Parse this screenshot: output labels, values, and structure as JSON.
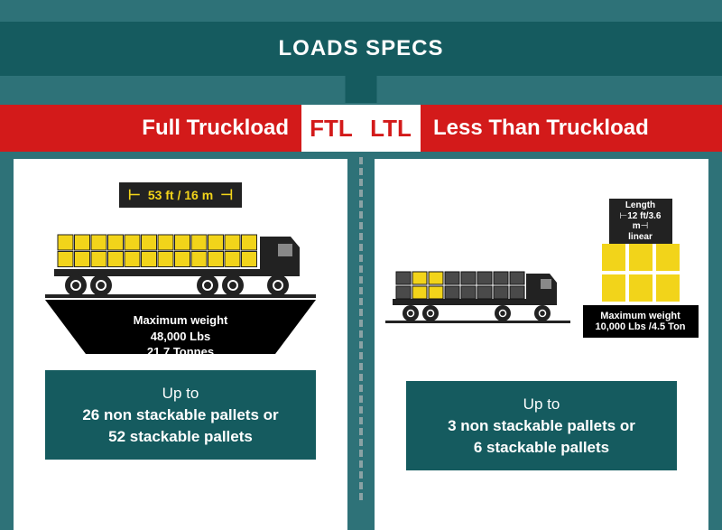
{
  "header": {
    "title": "LOADS SPECS"
  },
  "colors": {
    "bg": "#2e7278",
    "dark_teal": "#155b5f",
    "red": "#d31a1a",
    "yellow": "#f2d41a",
    "truck": "#222222",
    "grey_cargo": "#4a4a4a"
  },
  "ftl": {
    "label_long": "Full Truckload",
    "abbr": "FTL",
    "dimension": "53 ft / 16 m",
    "max_weight_label": "Maximum weight",
    "max_weight_lbs": "48,000 Lbs",
    "max_weight_tonnes": "21.7 Tonnes",
    "pallets_line1": "Up to",
    "pallets_line2": "26 non stackable pallets or",
    "pallets_line3": "52 stackable pallets",
    "truck": {
      "cargo_cols": 12,
      "cargo_rows": 2,
      "cargo_all_yellow": true,
      "wheels": 5
    }
  },
  "ltl": {
    "label_long": "Less Than Truckload",
    "abbr": "LTL",
    "length_label": "Length",
    "length_value": "12 ft/3.6 m",
    "length_sub": "linear",
    "max_weight_label": "Maximum weight",
    "max_weight_value": "10,000 Lbs /4.5 Ton",
    "pallets_line1": "Up to",
    "pallets_line2": "3 non stackable pallets or",
    "pallets_line3": "6 stackable pallets",
    "truck": {
      "cargo_cols": 8,
      "cargo_rows": 2,
      "yellow_cols": [
        1,
        2
      ],
      "wheels": 4
    },
    "stack_grid": {
      "cols": 3,
      "rows": 2
    }
  }
}
